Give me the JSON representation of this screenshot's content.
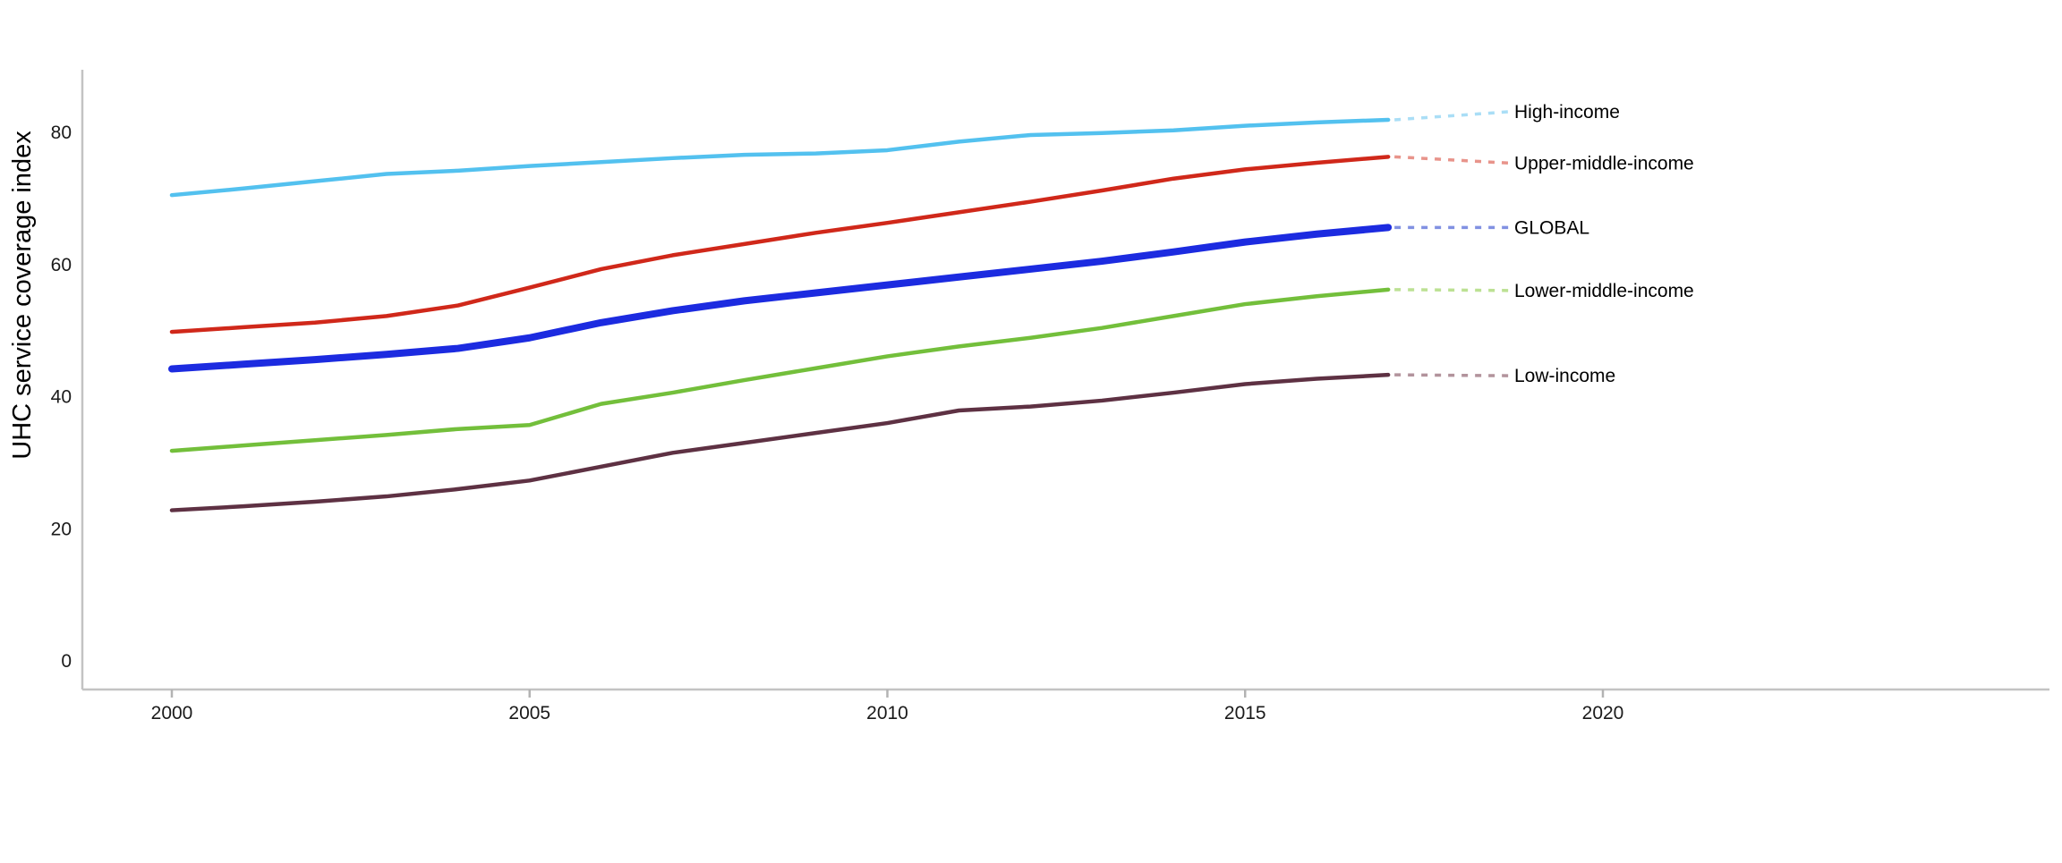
{
  "chart_data": {
    "type": "line",
    "title": "",
    "ylabel": "UHC service coverage index",
    "xlabel": "",
    "years": [
      2000,
      2001,
      2002,
      2003,
      2004,
      2005,
      2006,
      2007,
      2008,
      2009,
      2010,
      2011,
      2012,
      2013,
      2014,
      2015,
      2016,
      2017
    ],
    "xticks": [
      2000,
      2005,
      2010,
      2015,
      2020
    ],
    "yticks": [
      0,
      20,
      40,
      60,
      80
    ],
    "xlim": [
      1998.7,
      2026.3
    ],
    "ylim": [
      0,
      88
    ],
    "grid": false,
    "legend_position": "right-direct-labels-with-dashed-leaders",
    "axis_color": "#c3c3c3",
    "tick_mark_color": "#b3b3b3",
    "text_color": "#1a1a1a",
    "series": [
      {
        "name": "High-income",
        "color": "#53c1ef",
        "dash_color": "#aadef6",
        "emphasis": false,
        "values": [
          70.5,
          71.5,
          72.6,
          73.7,
          74.2,
          74.9,
          75.5,
          76.1,
          76.6,
          76.8,
          77.3,
          78.6,
          79.6,
          79.9,
          80.3,
          81.0,
          81.5,
          81.9
        ]
      },
      {
        "name": "Upper-middle-income",
        "color": "#d0281a",
        "dash_color": "#e8948b",
        "emphasis": false,
        "values": [
          49.8,
          50.5,
          51.2,
          52.2,
          53.8,
          56.5,
          59.3,
          61.4,
          63.1,
          64.8,
          66.3,
          67.9,
          69.5,
          71.2,
          73.0,
          74.4,
          75.4,
          76.3
        ]
      },
      {
        "name": "GLOBAL",
        "color": "#1c2be0",
        "dash_color": "#8191e2",
        "emphasis": true,
        "values": [
          44.2,
          44.9,
          45.6,
          46.4,
          47.3,
          48.9,
          51.2,
          53.0,
          54.5,
          55.7,
          56.9,
          58.1,
          59.3,
          60.5,
          61.9,
          63.4,
          64.6,
          65.6
        ]
      },
      {
        "name": "Lower-middle-income",
        "color": "#73bf3b",
        "dash_color": "#bce193",
        "emphasis": false,
        "values": [
          31.8,
          32.6,
          33.4,
          34.2,
          35.1,
          35.7,
          38.9,
          40.6,
          42.5,
          44.3,
          46.1,
          47.6,
          48.9,
          50.4,
          52.2,
          54.0,
          55.2,
          56.2
        ]
      },
      {
        "name": "Low-income",
        "color": "#5e3143",
        "dash_color": "#b2939c",
        "emphasis": false,
        "values": [
          22.8,
          23.4,
          24.1,
          24.9,
          26.0,
          27.3,
          29.4,
          31.5,
          33.0,
          34.5,
          36.0,
          37.9,
          38.5,
          39.4,
          40.6,
          41.9,
          42.7,
          43.3
        ]
      }
    ]
  }
}
